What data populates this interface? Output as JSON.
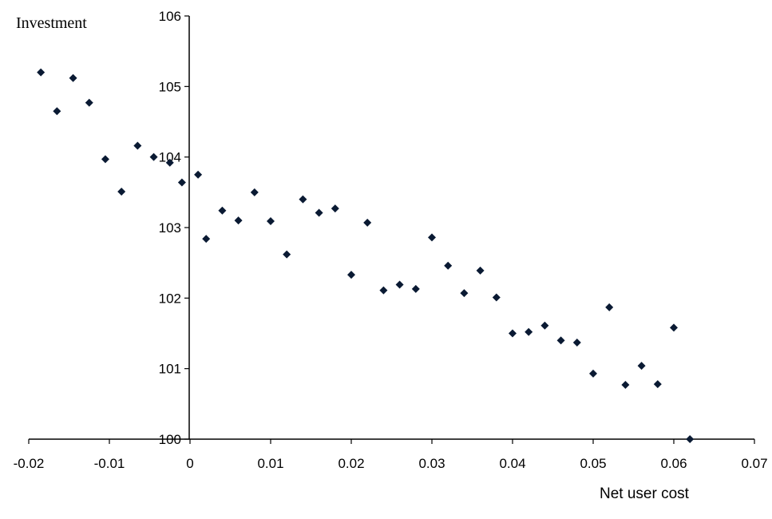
{
  "chart_data": {
    "type": "scatter",
    "title": "",
    "xlabel": "Net user cost",
    "ylabel": "Investment",
    "xlim": [
      -0.02,
      0.07
    ],
    "ylim": [
      100,
      106
    ],
    "x_ticks": [
      "-0.02",
      "-0.01",
      "0",
      "0.01",
      "0.02",
      "0.03",
      "0.04",
      "0.05",
      "0.06",
      "0.07"
    ],
    "y_ticks": [
      "100",
      "101",
      "102",
      "103",
      "104",
      "105",
      "106"
    ],
    "grid": false,
    "legend": "none",
    "marker": "diamond",
    "marker_color": "#0a1a33",
    "points": [
      {
        "x": -0.0185,
        "y": 105.2
      },
      {
        "x": -0.0165,
        "y": 104.65
      },
      {
        "x": -0.0145,
        "y": 105.12
      },
      {
        "x": -0.0125,
        "y": 104.77
      },
      {
        "x": -0.0105,
        "y": 103.97
      },
      {
        "x": -0.0085,
        "y": 103.51
      },
      {
        "x": -0.0065,
        "y": 104.16
      },
      {
        "x": -0.0045,
        "y": 104.0
      },
      {
        "x": -0.0025,
        "y": 103.92
      },
      {
        "x": -0.001,
        "y": 103.64
      },
      {
        "x": 0.001,
        "y": 103.75
      },
      {
        "x": 0.002,
        "y": 102.84
      },
      {
        "x": 0.004,
        "y": 103.24
      },
      {
        "x": 0.006,
        "y": 103.1
      },
      {
        "x": 0.008,
        "y": 103.5
      },
      {
        "x": 0.01,
        "y": 103.09
      },
      {
        "x": 0.012,
        "y": 102.62
      },
      {
        "x": 0.014,
        "y": 103.4
      },
      {
        "x": 0.016,
        "y": 103.21
      },
      {
        "x": 0.018,
        "y": 103.27
      },
      {
        "x": 0.02,
        "y": 102.33
      },
      {
        "x": 0.022,
        "y": 103.07
      },
      {
        "x": 0.024,
        "y": 102.11
      },
      {
        "x": 0.026,
        "y": 102.19
      },
      {
        "x": 0.028,
        "y": 102.13
      },
      {
        "x": 0.03,
        "y": 102.86
      },
      {
        "x": 0.032,
        "y": 102.46
      },
      {
        "x": 0.034,
        "y": 102.07
      },
      {
        "x": 0.036,
        "y": 102.39
      },
      {
        "x": 0.038,
        "y": 102.01
      },
      {
        "x": 0.04,
        "y": 101.5
      },
      {
        "x": 0.042,
        "y": 101.52
      },
      {
        "x": 0.044,
        "y": 101.61
      },
      {
        "x": 0.046,
        "y": 101.4
      },
      {
        "x": 0.048,
        "y": 101.37
      },
      {
        "x": 0.05,
        "y": 100.93
      },
      {
        "x": 0.052,
        "y": 101.87
      },
      {
        "x": 0.054,
        "y": 100.77
      },
      {
        "x": 0.056,
        "y": 101.04
      },
      {
        "x": 0.058,
        "y": 100.78
      },
      {
        "x": 0.06,
        "y": 101.58
      },
      {
        "x": 0.062,
        "y": 100.0
      }
    ]
  }
}
